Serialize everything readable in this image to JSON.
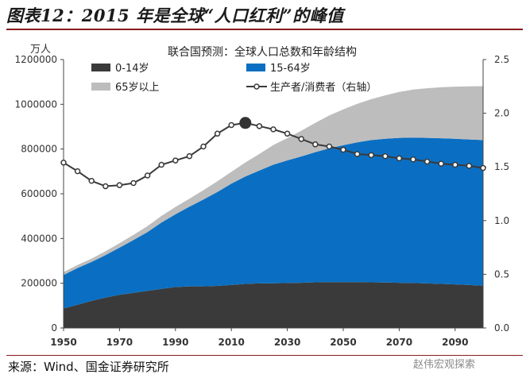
{
  "figure": {
    "title": "图表12：2015 年是全球“人口红利”的峰值",
    "source": "来源：Wind、国金证券研究所",
    "watermark": "赵伟宏观探索"
  },
  "colors": {
    "age_0_14": "#3a3a3a",
    "age_15_64": "#0a6fc2",
    "age_65_plus": "#bdbdbd",
    "ratio_line": "#3a3a3a",
    "rule": "#8a1c1c"
  },
  "chart_data": {
    "type": "area",
    "title": "联合国预测：全球人口总数和年龄结构",
    "y_unit_label": "万人",
    "x": [
      1950,
      1955,
      1960,
      1965,
      1970,
      1975,
      1980,
      1985,
      1990,
      1995,
      2000,
      2005,
      2010,
      2015,
      2020,
      2025,
      2030,
      2035,
      2040,
      2045,
      2050,
      2055,
      2060,
      2065,
      2070,
      2075,
      2080,
      2085,
      2090,
      2095,
      2100
    ],
    "xticks": [
      "1950",
      "1970",
      "1990",
      "2010",
      "2030",
      "2050",
      "2070",
      "2090"
    ],
    "xlim": [
      1950,
      2100
    ],
    "ylim": [
      0,
      1200000
    ],
    "yticks": [
      "0",
      "200000",
      "400000",
      "600000",
      "800000",
      "1000000",
      "1200000"
    ],
    "y2lim": [
      0,
      2.5
    ],
    "y2ticks": [
      "0.0",
      "0.5",
      "1.0",
      "1.5",
      "2.0",
      "2.5"
    ],
    "stacked": true,
    "series": [
      {
        "name": "0-14岁",
        "kind": "area",
        "values": [
          87000,
          104000,
          121000,
          136000,
          148000,
          157000,
          166000,
          175000,
          183000,
          186000,
          186000,
          188000,
          192000,
          197000,
          199000,
          200000,
          201000,
          202000,
          204000,
          205000,
          205000,
          205000,
          204000,
          203000,
          202000,
          201000,
          199000,
          197000,
          195000,
          192000,
          189000
        ]
      },
      {
        "name": "15-64岁",
        "kind": "area",
        "values": [
          150000,
          164000,
          174000,
          190000,
          211000,
          236000,
          263000,
          296000,
          325000,
          356000,
          388000,
          420000,
          453000,
          480000,
          505000,
          530000,
          548000,
          565000,
          582000,
          598000,
          612000,
          625000,
          636000,
          643000,
          648000,
          650000,
          651000,
          651000,
          651000,
          651000,
          651000
        ]
      },
      {
        "name": "65岁以上",
        "kind": "area",
        "values": [
          13000,
          14000,
          15000,
          17000,
          20000,
          23000,
          26000,
          30000,
          33000,
          36000,
          42000,
          48000,
          53000,
          63000,
          74000,
          88000,
          100000,
          115000,
          131000,
          147000,
          160000,
          172000,
          183000,
          194000,
          205000,
          215000,
          222000,
          228000,
          233000,
          237000,
          241000
        ]
      },
      {
        "name": "生产者/消费者（右轴）",
        "kind": "line",
        "axis": "right",
        "values": [
          1.54,
          1.46,
          1.37,
          1.32,
          1.33,
          1.35,
          1.42,
          1.52,
          1.56,
          1.6,
          1.69,
          1.81,
          1.89,
          1.91,
          1.88,
          1.85,
          1.81,
          1.76,
          1.71,
          1.69,
          1.66,
          1.62,
          1.61,
          1.6,
          1.58,
          1.57,
          1.55,
          1.53,
          1.52,
          1.51,
          1.49
        ]
      }
    ],
    "legend": [
      "0-14岁",
      "15-64岁",
      "65岁以上",
      "生产者/消费者（右轴）"
    ],
    "highlight": {
      "x": 2015,
      "value": 1.91
    }
  }
}
